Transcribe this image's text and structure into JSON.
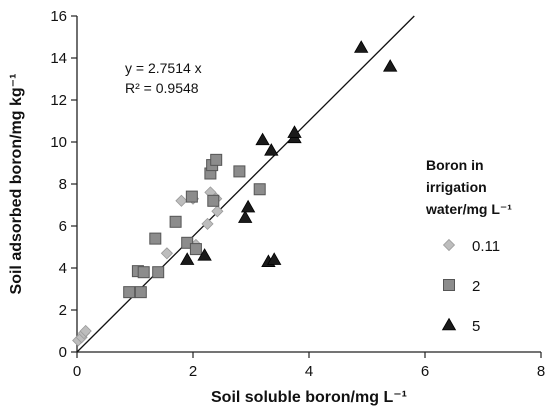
{
  "chart_data": {
    "type": "scatter",
    "title": "",
    "xlabel": "Soil soluble boron/mg L⁻¹",
    "ylabel": "Soil adsorbed boron/mg kg⁻¹",
    "xlim": [
      0,
      8
    ],
    "ylim": [
      0,
      16
    ],
    "xticks": [
      "0",
      "2",
      "4",
      "6",
      "8"
    ],
    "yticks": [
      "0",
      "2",
      "4",
      "6",
      "8",
      "10",
      "12",
      "14",
      "16"
    ],
    "grid": false,
    "legend": {
      "title_lines": [
        "Boron in",
        "irrigation",
        "water/mg L⁻¹"
      ],
      "placement": "right"
    },
    "trendline": {
      "slope": 2.7514,
      "intercept": 0,
      "equation": "y = 2.7514 x",
      "r2": "R² = 0.9548"
    },
    "series": [
      {
        "name": "0.11",
        "marker": "diamond",
        "color": "#bdbdbd",
        "points": [
          [
            0.02,
            0.55
          ],
          [
            0.08,
            0.7
          ],
          [
            0.12,
            0.9
          ],
          [
            0.15,
            1.0
          ],
          [
            1.55,
            4.7
          ],
          [
            1.8,
            7.2
          ],
          [
            2.0,
            7.3
          ],
          [
            2.05,
            5.1
          ],
          [
            2.25,
            6.1
          ],
          [
            2.3,
            7.6
          ],
          [
            2.42,
            6.7
          ],
          [
            2.4,
            7.3
          ]
        ]
      },
      {
        "name": "2",
        "marker": "square",
        "color": "#8c8c8c",
        "points": [
          [
            0.9,
            2.85
          ],
          [
            1.05,
            3.85
          ],
          [
            1.1,
            2.85
          ],
          [
            1.15,
            3.8
          ],
          [
            1.35,
            5.4
          ],
          [
            1.4,
            3.8
          ],
          [
            1.7,
            6.2
          ],
          [
            1.9,
            5.2
          ],
          [
            1.98,
            7.4
          ],
          [
            2.05,
            4.9
          ],
          [
            2.3,
            8.5
          ],
          [
            2.33,
            8.9
          ],
          [
            2.35,
            7.2
          ],
          [
            2.4,
            9.15
          ],
          [
            2.8,
            8.6
          ],
          [
            3.15,
            7.75
          ]
        ]
      },
      {
        "name": "5",
        "marker": "triangle",
        "color": "#1a1a1a",
        "points": [
          [
            1.9,
            4.4
          ],
          [
            2.2,
            4.6
          ],
          [
            2.9,
            6.4
          ],
          [
            2.95,
            6.9
          ],
          [
            3.2,
            10.1
          ],
          [
            3.3,
            4.3
          ],
          [
            3.35,
            9.6
          ],
          [
            3.4,
            4.4
          ],
          [
            3.75,
            10.2
          ],
          [
            3.75,
            10.45
          ],
          [
            4.9,
            14.5
          ],
          [
            5.4,
            13.6
          ]
        ]
      }
    ]
  }
}
